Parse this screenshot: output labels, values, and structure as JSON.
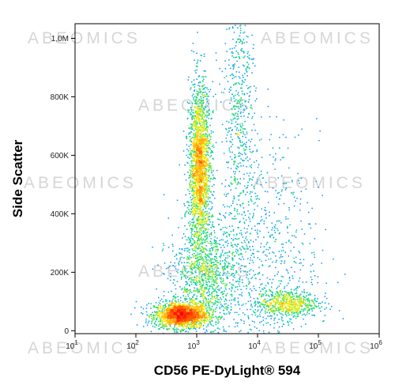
{
  "chart_data": {
    "type": "scatter",
    "subtype": "flow-cytometry density dot plot",
    "xlabel": "CD56 PE-DyLight® 594",
    "ylabel": "Side Scatter",
    "x_scale": "log",
    "xlim": [
      10,
      1000000
    ],
    "x_ticks": [
      {
        "value": 10,
        "base": "10",
        "exp": "1"
      },
      {
        "value": 100,
        "base": "10",
        "exp": "2"
      },
      {
        "value": 1000,
        "base": "10",
        "exp": "3"
      },
      {
        "value": 10000,
        "base": "10",
        "exp": "4"
      },
      {
        "value": 100000,
        "base": "10",
        "exp": "5"
      },
      {
        "value": 1000000,
        "base": "10",
        "exp": "6"
      }
    ],
    "y_scale": "linear",
    "ylim": [
      -10000,
      1050000
    ],
    "y_ticks": [
      {
        "value": 0,
        "label": "0"
      },
      {
        "value": 200000,
        "label": "200K"
      },
      {
        "value": 400000,
        "label": "400K"
      },
      {
        "value": 600000,
        "label": "600K"
      },
      {
        "value": 800000,
        "label": "800K"
      },
      {
        "value": 1000000,
        "label": "1,0M"
      }
    ],
    "populations": [
      {
        "center_x": 550,
        "center_y": 55000,
        "x_spread_log": 0.22,
        "y_spread": 22000,
        "weight": 0.26
      },
      {
        "center_x": 30000,
        "center_y": 95000,
        "x_spread_log": 0.26,
        "y_spread": 24000,
        "weight": 0.09
      },
      {
        "center_x": 1100,
        "center_y": 560000,
        "x_spread_log": 0.09,
        "y_spread": 140000,
        "weight": 0.3
      },
      {
        "center_x": 5000,
        "center_y": 750000,
        "x_spread_log": 0.13,
        "y_spread": 230000,
        "weight": 0.08
      },
      {
        "center_x": 1300,
        "center_y": 180000,
        "x_spread_log": 0.28,
        "y_spread": 90000,
        "weight": 0.15
      },
      {
        "center_x": 10000,
        "center_y": 250000,
        "x_spread_log": 0.5,
        "y_spread": 200000,
        "weight": 0.12
      }
    ],
    "colormap": [
      "#0000ff",
      "#00a0ff",
      "#00dd66",
      "#ffee00",
      "#ff7700",
      "#ff0000"
    ],
    "grid": false,
    "watermark": "ABEOMICS"
  }
}
